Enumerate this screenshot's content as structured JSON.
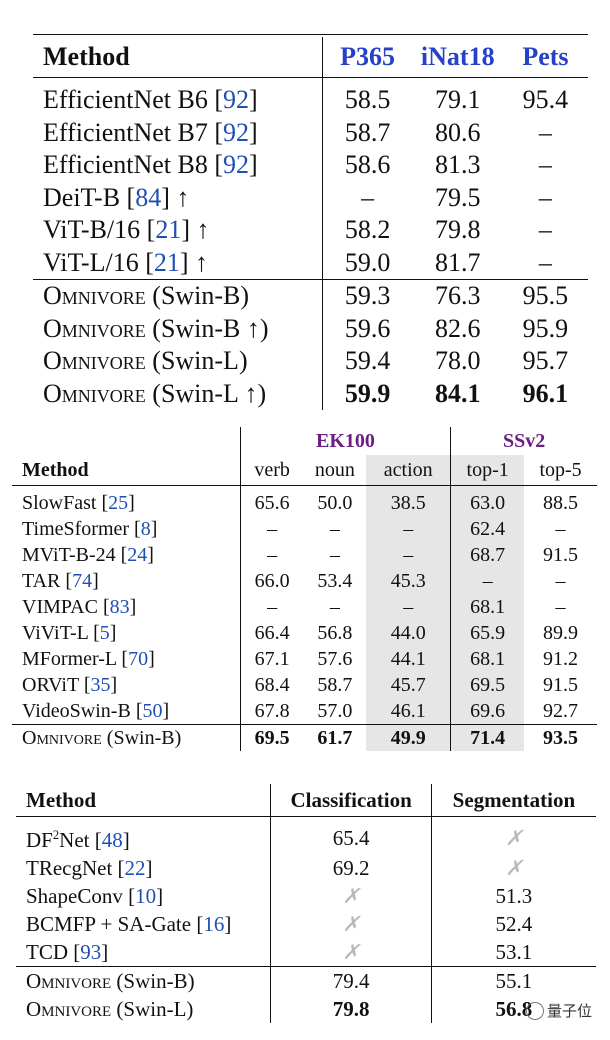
{
  "table1": {
    "headers": [
      "Method",
      "P365",
      "iNat18",
      "Pets"
    ],
    "rows": [
      {
        "name": "EfficientNet B6 ",
        "ref": "92",
        "arrow": "",
        "sc": false,
        "v": [
          "58.5",
          "79.1",
          "95.4"
        ]
      },
      {
        "name": "EfficientNet B7 ",
        "ref": "92",
        "arrow": "",
        "sc": false,
        "v": [
          "58.7",
          "80.6",
          "–"
        ]
      },
      {
        "name": "EfficientNet B8 ",
        "ref": "92",
        "arrow": "",
        "sc": false,
        "v": [
          "58.6",
          "81.3",
          "–"
        ]
      },
      {
        "name": "DeiT-B ",
        "ref": "84",
        "arrow": " ↑",
        "sc": false,
        "v": [
          "–",
          "79.5",
          "–"
        ]
      },
      {
        "name": "ViT-B/16 ",
        "ref": "21",
        "arrow": " ↑",
        "sc": false,
        "v": [
          "58.2",
          "79.8",
          "–"
        ]
      },
      {
        "name": "ViT-L/16 ",
        "ref": "21",
        "arrow": " ↑",
        "sc": false,
        "v": [
          "59.0",
          "81.7",
          "–"
        ]
      },
      {
        "name": "Omnivore",
        "suffix": " (Swin-B)",
        "sc": true,
        "v": [
          "59.3",
          "76.3",
          "95.5"
        ]
      },
      {
        "name": "Omnivore",
        "suffix": " (Swin-B ↑)",
        "sc": true,
        "v": [
          "59.6",
          "82.6",
          "95.9"
        ]
      },
      {
        "name": "Omnivore",
        "suffix": " (Swin-L)",
        "sc": true,
        "v": [
          "59.4",
          "78.0",
          "95.7"
        ]
      },
      {
        "name": "Omnivore",
        "suffix": " (Swin-L ↑)",
        "sc": true,
        "bold": true,
        "v": [
          "59.9",
          "84.1",
          "96.1"
        ]
      }
    ]
  },
  "table2": {
    "groups": [
      "EK100",
      "SSv2"
    ],
    "headers": [
      "Method",
      "verb",
      "noun",
      "action",
      "top-1",
      "top-5"
    ],
    "rows": [
      {
        "name": "SlowFast ",
        "ref": "25",
        "v": [
          "65.6",
          "50.0",
          "38.5",
          "63.0",
          "88.5"
        ]
      },
      {
        "name": "TimeSformer ",
        "ref": "8",
        "v": [
          "–",
          "–",
          "–",
          "62.4",
          "–"
        ]
      },
      {
        "name": "MViT-B-24 ",
        "ref": "24",
        "v": [
          "–",
          "–",
          "–",
          "68.7",
          "91.5"
        ]
      },
      {
        "name": "TAR ",
        "ref": "74",
        "v": [
          "66.0",
          "53.4",
          "45.3",
          "–",
          "–"
        ]
      },
      {
        "name": "VIMPAC ",
        "ref": "83",
        "v": [
          "–",
          "–",
          "–",
          "68.1",
          "–"
        ]
      },
      {
        "name": "ViViT-L ",
        "ref": "5",
        "v": [
          "66.4",
          "56.8",
          "44.0",
          "65.9",
          "89.9"
        ]
      },
      {
        "name": "MFormer-L ",
        "ref": "70",
        "v": [
          "67.1",
          "57.6",
          "44.1",
          "68.1",
          "91.2"
        ]
      },
      {
        "name": "ORViT ",
        "ref": "35",
        "v": [
          "68.4",
          "58.7",
          "45.7",
          "69.5",
          "91.5"
        ]
      },
      {
        "name": "VideoSwin-B ",
        "ref": "50",
        "v": [
          "67.8",
          "57.0",
          "46.1",
          "69.6",
          "92.7"
        ]
      }
    ],
    "omni": {
      "name": "Omnivore",
      "suffix": " (Swin-B)",
      "v": [
        "69.5",
        "61.7",
        "49.9",
        "71.4",
        "93.5"
      ]
    }
  },
  "table3": {
    "headers": [
      "Method",
      "Classification",
      "Segmentation"
    ],
    "rows": [
      {
        "pre": "DF",
        "sup": "2",
        "name": "Net ",
        "ref": "48",
        "v": [
          "65.4",
          "✗"
        ]
      },
      {
        "name": "TRecgNet ",
        "ref": "22",
        "v": [
          "69.2",
          "✗"
        ]
      },
      {
        "name": "ShapeConv ",
        "ref": "10",
        "v": [
          "✗",
          "51.3"
        ]
      },
      {
        "name": "BCMFP + SA-Gate ",
        "ref": "16",
        "v": [
          "✗",
          "52.4"
        ]
      },
      {
        "name": "TCD ",
        "ref": "93",
        "v": [
          "✗",
          "53.1"
        ]
      }
    ],
    "omni": [
      {
        "name": "Omnivore",
        "suffix": " (Swin-B)",
        "v": [
          "79.4",
          "55.1"
        ]
      },
      {
        "name": "Omnivore",
        "suffix": " (Swin-L)",
        "v": [
          "79.8",
          "56.8"
        ]
      }
    ]
  },
  "watermark": "量子位"
}
